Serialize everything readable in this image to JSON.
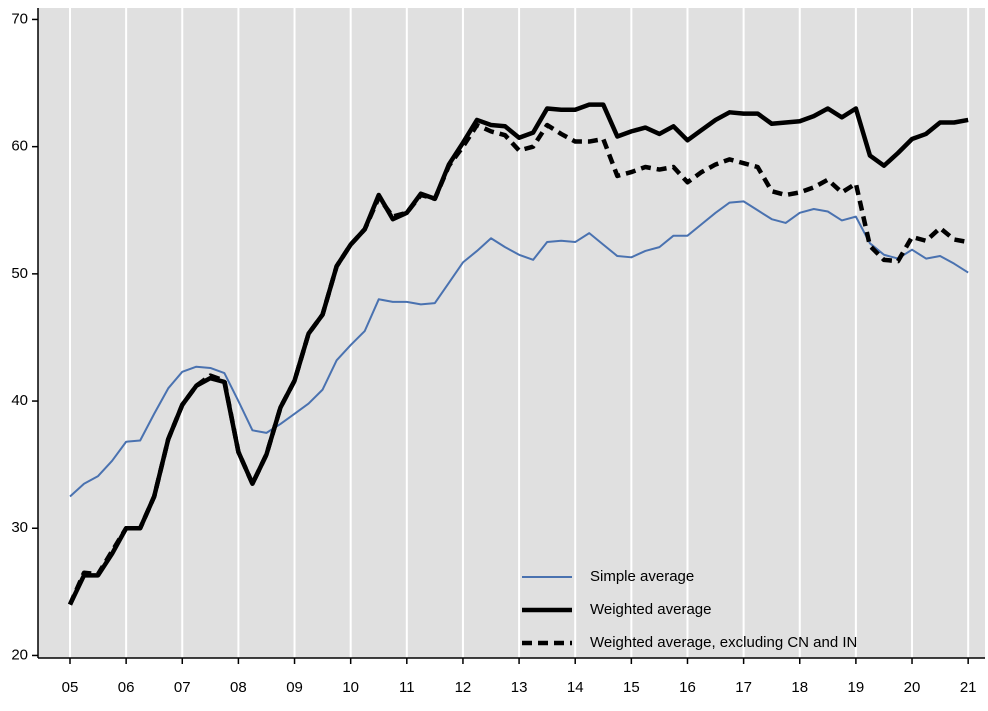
{
  "chart_data": {
    "type": "line",
    "x": [
      5,
      5.25,
      5.5,
      5.75,
      6,
      6.25,
      6.5,
      6.75,
      7,
      7.25,
      7.5,
      7.75,
      8,
      8.25,
      8.5,
      8.75,
      9,
      9.25,
      9.5,
      9.75,
      10,
      10.25,
      10.5,
      10.75,
      11,
      11.25,
      11.5,
      11.75,
      12,
      12.25,
      12.5,
      12.75,
      13,
      13.25,
      13.5,
      13.75,
      14,
      14.25,
      14.5,
      14.75,
      15,
      15.25,
      15.5,
      15.75,
      16,
      16.25,
      16.5,
      16.75,
      17,
      17.25,
      17.5,
      17.75,
      18,
      18.25,
      18.5,
      18.75,
      19,
      19.25,
      19.5,
      19.75,
      20,
      20.25,
      20.5,
      20.75,
      21
    ],
    "series": [
      {
        "name": "Simple average",
        "color": "#4a72b0",
        "style": "solid",
        "width": 2,
        "values": [
          32.5,
          33.5,
          34.1,
          35.3,
          36.8,
          36.9,
          39,
          41,
          42.3,
          42.7,
          42.6,
          42.2,
          40,
          37.7,
          37.5,
          38.2,
          39,
          39.8,
          40.9,
          43.2,
          44.4,
          45.5,
          48,
          47.8,
          47.8,
          47.6,
          47.7,
          49.3,
          50.9,
          51.8,
          52.8,
          52.1,
          51.5,
          51.1,
          52.5,
          52.6,
          52.5,
          53.2,
          52.3,
          51.4,
          51.3,
          51.8,
          52.1,
          53,
          53,
          53.9,
          54.8,
          55.6,
          55.7,
          55,
          54.3,
          54,
          54.8,
          55.1,
          54.9,
          54.2,
          54.5,
          52.4,
          51.5,
          51.2,
          51.9,
          51.2,
          51.4,
          50.8,
          50.1
        ]
      },
      {
        "name": "Weighted average",
        "color": "#000000",
        "style": "solid",
        "width": 4.5,
        "values": [
          24,
          26.3,
          26.3,
          28,
          30,
          30,
          32.5,
          37,
          39.7,
          41.2,
          41.8,
          41.5,
          36,
          33.5,
          35.8,
          39.5,
          41.6,
          45.3,
          46.8,
          50.6,
          52.3,
          53.5,
          56.2,
          54.3,
          54.8,
          56.3,
          55.9,
          58.6,
          60.3,
          62.1,
          61.7,
          61.6,
          60.7,
          61.1,
          63,
          62.9,
          62.9,
          63.3,
          63.3,
          60.8,
          61.2,
          61.5,
          61,
          61.6,
          60.5,
          61.3,
          62.1,
          62.7,
          62.6,
          62.6,
          61.8,
          61.9,
          62,
          62.4,
          63,
          62.3,
          63,
          59.3,
          58.5,
          59.5,
          60.6,
          61,
          61.9,
          61.9,
          62.1
        ]
      },
      {
        "name": "Weighted average, excluding CN and IN",
        "color": "#000000",
        "style": "dashed",
        "width": 4.5,
        "values": [
          24,
          26.5,
          26.4,
          28.2,
          30,
          30,
          32.5,
          37,
          39.7,
          41.2,
          42,
          41.6,
          36,
          33.5,
          35.8,
          39.5,
          41.6,
          45.3,
          46.8,
          50.6,
          52.3,
          53.5,
          56,
          54.5,
          54.8,
          56.2,
          55.9,
          58.5,
          60,
          61.7,
          61.2,
          60.9,
          59.7,
          60,
          61.7,
          61,
          60.4,
          60.4,
          60.6,
          57.7,
          58,
          58.4,
          58.2,
          58.4,
          57.2,
          58,
          58.6,
          59,
          58.7,
          58.4,
          56.5,
          56.2,
          56.4,
          56.8,
          57.4,
          56.4,
          57.1,
          52.2,
          51.1,
          51,
          52.9,
          52.6,
          53.6,
          52.7,
          52.5
        ]
      }
    ],
    "xlim": [
      4.43,
      21.3
    ],
    "xticks": [
      {
        "value": 5,
        "label": "05"
      },
      {
        "value": 6,
        "label": "06"
      },
      {
        "value": 7,
        "label": "07"
      },
      {
        "value": 8,
        "label": "08"
      },
      {
        "value": 9,
        "label": "09"
      },
      {
        "value": 10,
        "label": "10"
      },
      {
        "value": 11,
        "label": "11"
      },
      {
        "value": 12,
        "label": "12"
      },
      {
        "value": 13,
        "label": "13"
      },
      {
        "value": 14,
        "label": "14"
      },
      {
        "value": 15,
        "label": "15"
      },
      {
        "value": 16,
        "label": "16"
      },
      {
        "value": 17,
        "label": "17"
      },
      {
        "value": 18,
        "label": "18"
      },
      {
        "value": 19,
        "label": "19"
      },
      {
        "value": 20,
        "label": "20"
      },
      {
        "value": 21,
        "label": "21"
      }
    ],
    "ylim": [
      19.8,
      70.9
    ],
    "yticks": [
      20,
      30,
      40,
      50,
      60,
      70
    ],
    "grid": "x",
    "background": "#e0e0e0",
    "legend": "lower right"
  }
}
